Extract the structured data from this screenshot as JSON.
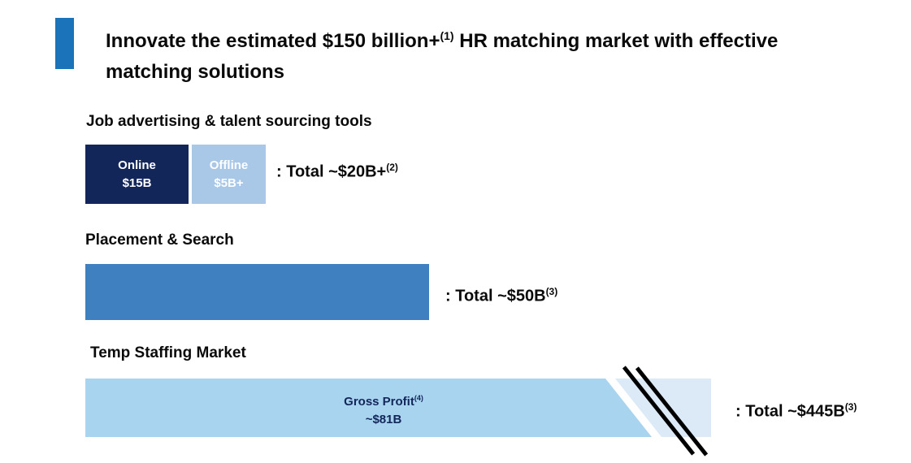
{
  "slide": {
    "title": {
      "part1": "Innovate the estimated $150 billion+",
      "sup": "(1)",
      "part2": " HR matching market with effective matching solutions"
    },
    "colors": {
      "accent": "#1b74ba",
      "online_navy": "#13265a",
      "offline_blue": "#a9c7e7",
      "placement_blue": "#3f80c1",
      "temp_blue": "#a8d4ef",
      "temp_pale": "#dceaf7"
    },
    "sections": [
      {
        "heading": "Job advertising & talent sourcing tools",
        "segments": [
          {
            "label": "Online",
            "value": "$15B"
          },
          {
            "label": "Offline",
            "value": "$5B+"
          }
        ],
        "total": ": Total ~$20B+",
        "total_sup": "(2)"
      },
      {
        "heading": "Placement & Search",
        "total": ": Total ~$50B",
        "total_sup": "(3)"
      },
      {
        "heading": "Temp Staffing Market",
        "bar_label": "Gross Profit",
        "bar_label_sup": "(4)",
        "bar_value": "~$81B",
        "total": ": Total ~$445B",
        "total_sup": "(3)"
      }
    ]
  },
  "chart_data": {
    "type": "bar",
    "title": "Innovate the estimated $150 billion+(1) HR matching market with effective matching solutions",
    "unit": "USD billions",
    "orientation": "horizontal",
    "bars": [
      {
        "category": "Job advertising & talent sourcing tools",
        "total": 20,
        "total_label": "~$20B+(2)",
        "segments": [
          {
            "label": "Online",
            "value": 15
          },
          {
            "label": "Offline",
            "value": 5
          }
        ]
      },
      {
        "category": "Placement & Search",
        "total": 50,
        "total_label": "~$50B(3)"
      },
      {
        "category": "Temp Staffing Market",
        "total": 445,
        "total_label": "~$445B(3)",
        "axis_break": true,
        "segments": [
          {
            "label": "Gross Profit(4)",
            "value": 81
          }
        ]
      }
    ]
  }
}
